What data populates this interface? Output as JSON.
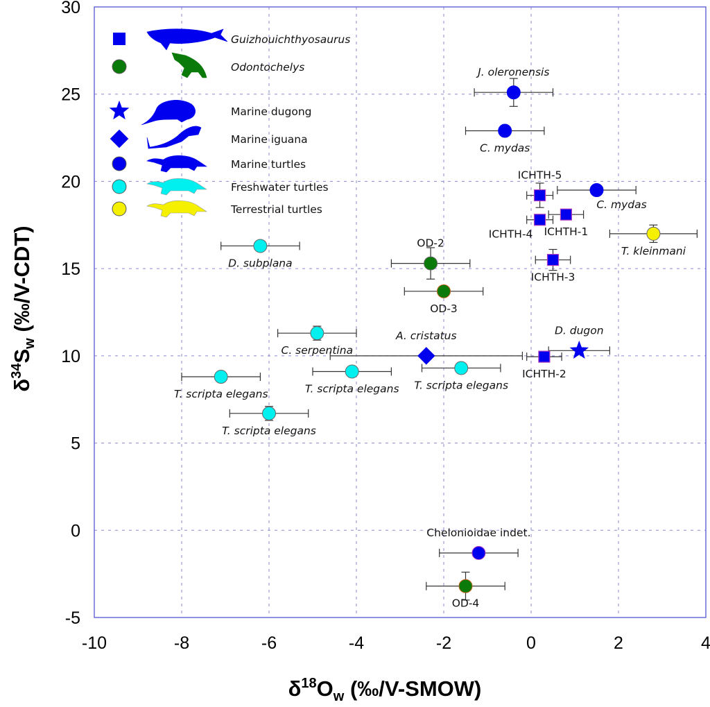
{
  "chart_data": {
    "type": "scatter",
    "title": "",
    "xlabel": "δ18Ow (‰/V-SMOW)",
    "xlabel_parts": {
      "base": "δ",
      "sup": "18",
      "main": "O",
      "sub": "w",
      "rest": " (‰/V-SMOW)"
    },
    "ylabel": "δ34Sw (‰/V-CDT)",
    "ylabel_parts": {
      "base": "δ",
      "sup": "34",
      "main": "S",
      "sub": "w",
      "rest": " (‰/V-CDT)"
    },
    "xlim": [
      -10,
      4
    ],
    "ylim": [
      -5,
      30
    ],
    "xticks": [
      -10,
      -8,
      -6,
      -4,
      -2,
      0,
      2,
      4
    ],
    "yticks": [
      -5,
      0,
      5,
      10,
      15,
      20,
      25,
      30
    ],
    "grid": true,
    "legend_position": "top-left",
    "colors": {
      "axis": "#6b6bd6",
      "grid": "#8a8ad0",
      "marine": "#0000ee",
      "odontochelys": "#0a7a0a",
      "freshwater": "#00f0f0",
      "terrestrial": "#f5f000",
      "square_edge": "#b03cc0",
      "od_edge": "#c0601a"
    },
    "legend": [
      {
        "label": "Guizhouichthyosaurus",
        "italic": true,
        "marker": "square",
        "color": "#0000ee",
        "silhouette": "ichthyosaur-silhouette"
      },
      {
        "label": "Odontochelys",
        "italic": true,
        "marker": "circle",
        "color": "#0a7a0a",
        "silhouette": "odontochelys-silhouette"
      },
      {
        "label": "Marine dugong",
        "italic": false,
        "marker": "star",
        "color": "#0000ee",
        "silhouette": "dugong-silhouette"
      },
      {
        "label": "Marine iguana",
        "italic": false,
        "marker": "diamond",
        "color": "#0000ee",
        "silhouette": "iguana-silhouette"
      },
      {
        "label": "Marine turtles",
        "italic": false,
        "marker": "circle",
        "color": "#0000ee",
        "silhouette": "turtle-silhouette"
      },
      {
        "label": "Freshwater turtles",
        "italic": false,
        "marker": "circle",
        "color": "#00f0f0",
        "silhouette": "turtle-silhouette"
      },
      {
        "label": "Terrestrial turtles",
        "italic": false,
        "marker": "circle",
        "color": "#f5f000",
        "silhouette": "turtle-silhouette"
      }
    ],
    "points": [
      {
        "label": "J. oleronensis",
        "italic": true,
        "group": "Marine turtles",
        "marker": "circle",
        "x": -0.4,
        "y": 25.1,
        "xerr": 0.9,
        "yerr": 0.8,
        "label_pos": "above"
      },
      {
        "label": "C. mydas",
        "italic": true,
        "group": "Marine turtles",
        "marker": "circle",
        "x": -0.6,
        "y": 22.9,
        "xerr": 0.9,
        "yerr": 0.2,
        "label_pos": "below"
      },
      {
        "label": "C. mydas",
        "italic": true,
        "group": "Marine turtles",
        "marker": "circle",
        "x": 1.5,
        "y": 19.5,
        "xerr": 0.9,
        "yerr": 0.0,
        "label_pos": "below-right"
      },
      {
        "label": "ICHTH-5",
        "italic": false,
        "group": "Guizhouichthyosaurus",
        "marker": "square",
        "x": 0.2,
        "y": 19.2,
        "xerr": 0.3,
        "yerr": 0.7,
        "label_pos": "above"
      },
      {
        "label": "ICHTH-4",
        "italic": false,
        "group": "Guizhouichthyosaurus",
        "marker": "square",
        "x": 0.2,
        "y": 17.8,
        "xerr": 0.3,
        "yerr": 0.0,
        "label_pos": "below-left"
      },
      {
        "label": "ICHTH-1",
        "italic": false,
        "group": "Guizhouichthyosaurus",
        "marker": "square",
        "x": 0.8,
        "y": 18.1,
        "xerr": 0.4,
        "yerr": 0.3,
        "label_pos": "below"
      },
      {
        "label": "T. kleinmani",
        "italic": true,
        "group": "Terrestrial turtles",
        "marker": "circle",
        "x": 2.8,
        "y": 17.0,
        "xerr": 1.0,
        "yerr": 0.5,
        "label_pos": "below"
      },
      {
        "label": "ICHTH-3",
        "italic": false,
        "group": "Guizhouichthyosaurus",
        "marker": "square",
        "x": 0.5,
        "y": 15.5,
        "xerr": 0.4,
        "yerr": 0.6,
        "label_pos": "below"
      },
      {
        "label": "D. subplana",
        "italic": true,
        "group": "Freshwater turtles",
        "marker": "circle",
        "x": -6.2,
        "y": 16.3,
        "xerr": 0.9,
        "yerr": 0.0,
        "label_pos": "below"
      },
      {
        "label": "OD-2",
        "italic": false,
        "group": "Odontochelys",
        "marker": "circle",
        "x": -2.3,
        "y": 15.3,
        "xerr": 0.9,
        "yerr": 0.9,
        "label_pos": "above"
      },
      {
        "label": "OD-3",
        "italic": false,
        "group": "Odontochelys",
        "marker": "circle",
        "x": -2.0,
        "y": 13.7,
        "xerr": 0.9,
        "yerr": 0.0,
        "label_pos": "below",
        "edge": "od"
      },
      {
        "label": "C. serpentina",
        "italic": true,
        "group": "Freshwater turtles",
        "marker": "circle",
        "x": -4.9,
        "y": 11.3,
        "xerr": 0.9,
        "yerr": 0.4,
        "label_pos": "below"
      },
      {
        "label": "A. cristatus",
        "italic": true,
        "group": "Marine iguana",
        "marker": "diamond",
        "x": -2.4,
        "y": 10.0,
        "xerr": 2.2,
        "yerr": 0.0,
        "label_pos": "above"
      },
      {
        "label": "D. dugon",
        "italic": true,
        "group": "Marine dugong",
        "marker": "star",
        "x": 1.1,
        "y": 10.3,
        "xerr": 0.7,
        "yerr": 0.0,
        "label_pos": "above"
      },
      {
        "label": "ICHTH-2",
        "italic": false,
        "group": "Guizhouichthyosaurus",
        "marker": "square",
        "x": 0.3,
        "y": 9.95,
        "xerr": 0.4,
        "yerr": 0.0,
        "label_pos": "below"
      },
      {
        "label": "T. scripta elegans",
        "italic": true,
        "group": "Freshwater turtles",
        "marker": "circle",
        "x": -7.1,
        "y": 8.8,
        "xerr": 0.9,
        "yerr": 0.0,
        "label_pos": "below"
      },
      {
        "label": "T. scripta elegans",
        "italic": true,
        "group": "Freshwater turtles",
        "marker": "circle",
        "x": -4.1,
        "y": 9.1,
        "xerr": 0.9,
        "yerr": 0.0,
        "label_pos": "below"
      },
      {
        "label": "T. scripta elegans",
        "italic": true,
        "group": "Freshwater turtles",
        "marker": "circle",
        "x": -1.6,
        "y": 9.3,
        "xerr": 0.9,
        "yerr": 0.3,
        "label_pos": "below"
      },
      {
        "label": "T. scripta elegans",
        "italic": true,
        "group": "Freshwater turtles",
        "marker": "circle",
        "x": -6.0,
        "y": 6.7,
        "xerr": 0.9,
        "yerr": 0.4,
        "label_pos": "below"
      },
      {
        "label": "Chelonioidae indet.",
        "italic": false,
        "group": "Marine turtles",
        "marker": "circle",
        "x": -1.2,
        "y": -1.3,
        "xerr": 0.9,
        "yerr": 0.0,
        "label_pos": "above",
        "edge": "purple"
      },
      {
        "label": "OD-4",
        "italic": false,
        "group": "Odontochelys",
        "marker": "circle",
        "x": -1.5,
        "y": -3.2,
        "xerr": 0.9,
        "yerr": 0.8,
        "label_pos": "below",
        "edge": "od"
      }
    ]
  }
}
